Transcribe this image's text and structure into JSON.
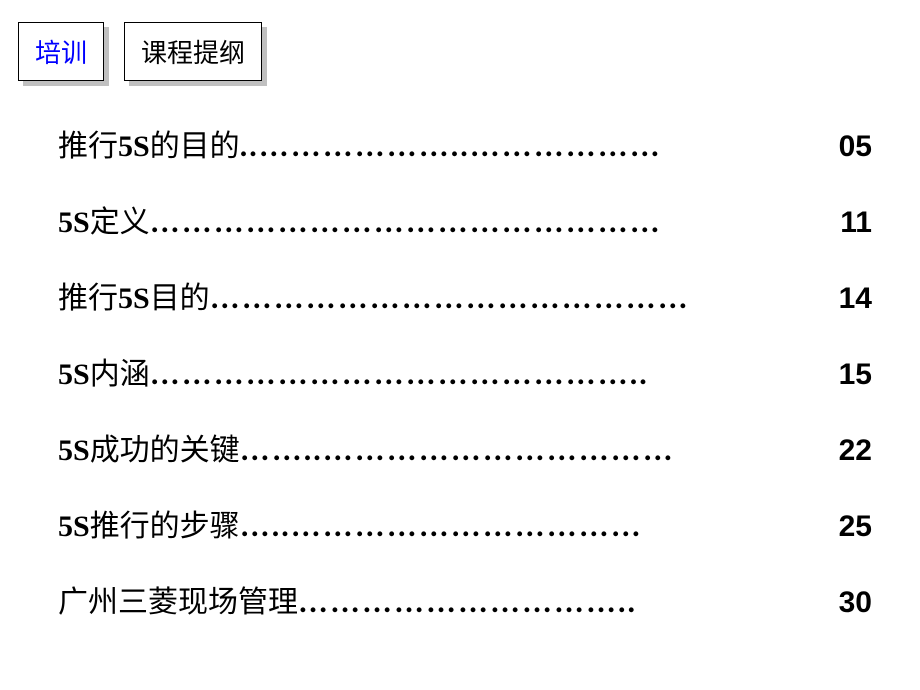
{
  "header": {
    "box1": {
      "text": "培训",
      "color": "#0000ff"
    },
    "box2": {
      "text": "课程提纲",
      "color": "#000000"
    }
  },
  "toc": {
    "items": [
      {
        "title_prefix": "推行",
        "title_bold": "5S",
        "title_suffix": "的目的",
        "page": "05"
      },
      {
        "title_prefix": "",
        "title_bold": "5S",
        "title_suffix": "定义",
        "page": "11"
      },
      {
        "title_prefix": "推行",
        "title_bold": "5S",
        "title_suffix": "目的",
        "page": "14"
      },
      {
        "title_prefix": "",
        "title_bold": "5S",
        "title_suffix": "内涵",
        "page": "15"
      },
      {
        "title_prefix": "",
        "title_bold": "5S",
        "title_suffix": "成功的关键",
        "page": "22"
      },
      {
        "title_prefix": "",
        "title_bold": "5S",
        "title_suffix": "推行的步骤",
        "page": "25"
      },
      {
        "title_prefix": "广州三菱现场管理",
        "title_bold": "",
        "title_suffix": "",
        "page": "30"
      }
    ]
  },
  "styling": {
    "background_color": "#ffffff",
    "text_color": "#000000",
    "blue_color": "#0000ff",
    "shadow_color": "#c0c0c0",
    "border_color": "#000000",
    "title_fontsize": 30,
    "box_fontsize": 26,
    "item_spacing": 32,
    "dots_char": "…"
  }
}
